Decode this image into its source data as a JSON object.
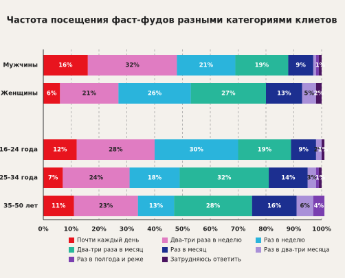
{
  "chart_data": {
    "type": "stacked-bar-horizontal",
    "title": "Частота посещения фаст-фудов разными категориями клиетов",
    "categories": [
      "Мужчины",
      "Женщины",
      "16-24 года",
      "25-34 года",
      "35-50 лет"
    ],
    "xlim": [
      0,
      100
    ],
    "xticks": [
      {
        "value": 0,
        "label": "0%"
      },
      {
        "value": 10,
        "label": "10%"
      },
      {
        "value": 20,
        "label": "20%"
      },
      {
        "value": 30,
        "label": "30%"
      },
      {
        "value": 40,
        "label": "40%"
      },
      {
        "value": 50,
        "label": "50%"
      },
      {
        "value": 60,
        "label": "60%"
      },
      {
        "value": 70,
        "label": "70%"
      },
      {
        "value": 80,
        "label": "80%"
      },
      {
        "value": 90,
        "label": "90%"
      },
      {
        "value": 100,
        "label": "100%"
      }
    ],
    "grid": true,
    "series": [
      {
        "name": "Почти каждый день",
        "color": "#e8141e",
        "values": [
          16,
          6,
          12,
          7,
          11
        ],
        "value_labels": [
          "16%",
          "6%",
          "12%",
          "7%",
          "11%"
        ]
      },
      {
        "name": "Два-три раза в неделю",
        "color": "#e07cc2",
        "values": [
          32,
          21,
          28,
          24,
          23
        ],
        "value_labels": [
          "32%",
          "21%",
          "28%",
          "24%",
          "23%"
        ]
      },
      {
        "name": "Раз в неделю",
        "color": "#2ab4dc",
        "values": [
          21,
          26,
          30,
          18,
          13
        ],
        "value_labels": [
          "21%",
          "26%",
          "30%",
          "18%",
          "13%"
        ]
      },
      {
        "name": "Два-три раза в месяц",
        "color": "#27b79a",
        "values": [
          19,
          27,
          19,
          32,
          28
        ],
        "value_labels": [
          "19%",
          "27%",
          "19%",
          "32%",
          "28%"
        ]
      },
      {
        "name": "Раз в месяц",
        "color": "#1c2f90",
        "values": [
          9,
          13,
          9,
          14,
          16
        ],
        "value_labels": [
          "9%",
          "13%",
          "9%",
          "14%",
          "16%"
        ]
      },
      {
        "name": "Раз в два-три месяца",
        "color": "#a990d8",
        "values": [
          1,
          5,
          2,
          3,
          6
        ],
        "value_labels": [
          null,
          "5%",
          "2%",
          "3%",
          "6%"
        ]
      },
      {
        "name": "Раз в полгода и реже",
        "color": "#7a3fb0",
        "values": [
          1,
          0,
          0,
          1,
          4
        ],
        "value_labels": [
          null,
          null,
          null,
          null,
          "4%"
        ]
      },
      {
        "name": "Затрудняюсь ответить",
        "color": "#4a1460",
        "values": [
          1,
          2,
          1,
          1,
          0
        ],
        "value_labels": [
          "1%",
          "2%",
          "1%",
          "1%",
          null
        ]
      }
    ]
  }
}
